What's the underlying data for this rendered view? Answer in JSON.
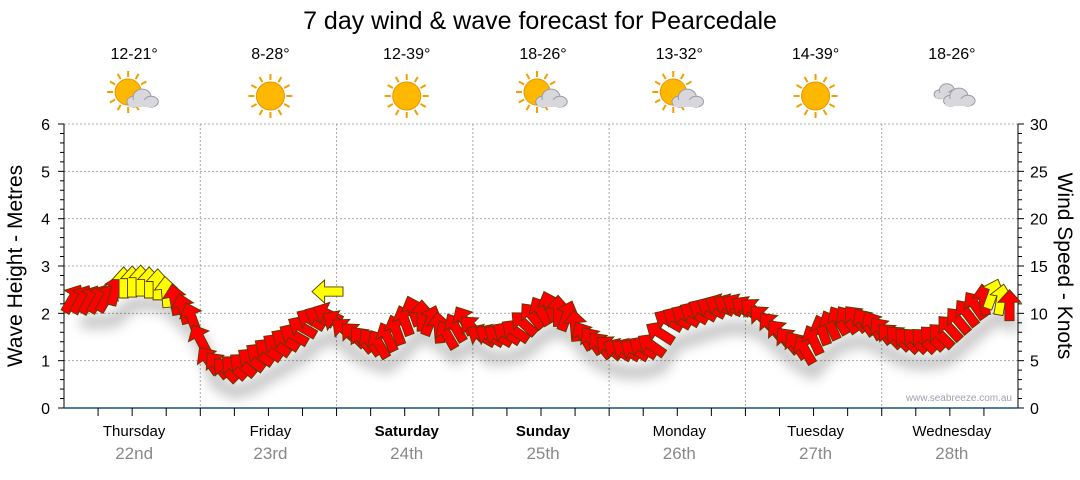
{
  "chart_data": {
    "type": "scatter",
    "title": "7 day wind & wave forecast for Pearcedale",
    "ylabel_left": "Wave Height - Metres",
    "ylabel_right": "Wind Speed - Knots",
    "ylim_left": [
      0,
      6
    ],
    "ylim_right": [
      0,
      30
    ],
    "yticks_left": [
      "0",
      "1",
      "2",
      "3",
      "4",
      "5",
      "6"
    ],
    "yticks_right": [
      "0",
      "5",
      "10",
      "15",
      "20",
      "25",
      "30"
    ],
    "grid": true,
    "watermark": "www.seabreeze.com.au",
    "days": [
      {
        "name": "Thursday",
        "date": "22nd",
        "temp": "12-21°",
        "weather": "partly-cloudy",
        "bold": false
      },
      {
        "name": "Friday",
        "date": "23rd",
        "temp": "8-28°",
        "weather": "sunny",
        "bold": false
      },
      {
        "name": "Saturday",
        "date": "24th",
        "temp": "12-39°",
        "weather": "sunny",
        "bold": true
      },
      {
        "name": "Sunday",
        "date": "25th",
        "temp": "18-26°",
        "weather": "partly-cloudy",
        "bold": true
      },
      {
        "name": "Monday",
        "date": "26th",
        "temp": "13-32°",
        "weather": "partly-cloudy",
        "bold": false
      },
      {
        "name": "Tuesday",
        "date": "27th",
        "temp": "14-39°",
        "weather": "sunny",
        "bold": false
      },
      {
        "name": "Wednesday",
        "date": "28th",
        "temp": "18-26°",
        "weather": "cloudy",
        "bold": false
      }
    ],
    "wind": {
      "hours": [
        0,
        3,
        6,
        9,
        12,
        15,
        18,
        21,
        24,
        27,
        30,
        33,
        36,
        39,
        42,
        45,
        48,
        51,
        54,
        57,
        60,
        63,
        66,
        69,
        72,
        75,
        78,
        81,
        84,
        87,
        90,
        93,
        96,
        99,
        102,
        105,
        108,
        111,
        114,
        117,
        120,
        123,
        126,
        129,
        132,
        135,
        138,
        141,
        144,
        147,
        150,
        153,
        156,
        159,
        162,
        165
      ],
      "speed_knots": [
        11.5,
        11.4,
        11.6,
        13.2,
        13.4,
        13.0,
        11.4,
        9.5,
        5.0,
        4.0,
        4.5,
        5.6,
        6.6,
        7.7,
        9.3,
        9.9,
        8.2,
        7.2,
        6.7,
        8.2,
        10.2,
        9.2,
        7.7,
        9.2,
        7.6,
        7.6,
        8.1,
        9.7,
        10.7,
        9.7,
        7.6,
        6.6,
        6.1,
        6.1,
        6.6,
        9.2,
        9.7,
        10.3,
        10.8,
        10.8,
        10.3,
        8.7,
        7.1,
        6.1,
        8.2,
        9.2,
        9.4,
        8.7,
        7.6,
        7.1,
        7.1,
        7.6,
        9.2,
        10.8,
        12.0,
        10.8
      ],
      "direction_deg": [
        30,
        30,
        30,
        0,
        0,
        0,
        -10,
        -20,
        -35,
        -45,
        -50,
        -55,
        -55,
        -60,
        -60,
        -65,
        -50,
        -40,
        -30,
        -20,
        -20,
        20,
        -30,
        -30,
        -60,
        -60,
        -55,
        -40,
        -20,
        20,
        -30,
        -40,
        -60,
        -60,
        -55,
        -60,
        -60,
        -60,
        -65,
        -60,
        -50,
        -40,
        -40,
        -30,
        -20,
        -30,
        -40,
        -30,
        -45,
        -45,
        -45,
        -45,
        -40,
        -35,
        20,
        0
      ],
      "colors": [
        "#ff0000",
        "#ff0000",
        "#ff0000",
        "#ffff00",
        "#ffff00",
        "#ffff00",
        "#ff0000",
        "#ff0000",
        "#ff0000",
        "#ff0000",
        "#ff0000",
        "#ff0000",
        "#ff0000",
        "#ff0000",
        "#ff0000",
        "#ff0000",
        "#ff0000",
        "#ff0000",
        "#ff0000",
        "#ff0000",
        "#ff0000",
        "#ff0000",
        "#ff0000",
        "#ff0000",
        "#ff0000",
        "#ff0000",
        "#ff0000",
        "#ff0000",
        "#ff0000",
        "#ff0000",
        "#ff0000",
        "#ff0000",
        "#ff0000",
        "#ff0000",
        "#ff0000",
        "#ff0000",
        "#ff0000",
        "#ff0000",
        "#ff0000",
        "#ff0000",
        "#ff0000",
        "#ff0000",
        "#ff0000",
        "#ff0000",
        "#ff0000",
        "#ff0000",
        "#ff0000",
        "#ff0000",
        "#ff0000",
        "#ff0000",
        "#ff0000",
        "#ff0000",
        "#ff0000",
        "#ff0000",
        "#ffff00",
        "#ff0000"
      ],
      "extra_arrow": {
        "hour": 45,
        "speed_knots": 12.3,
        "direction_deg": -90,
        "color": "#ffff00"
      }
    }
  }
}
